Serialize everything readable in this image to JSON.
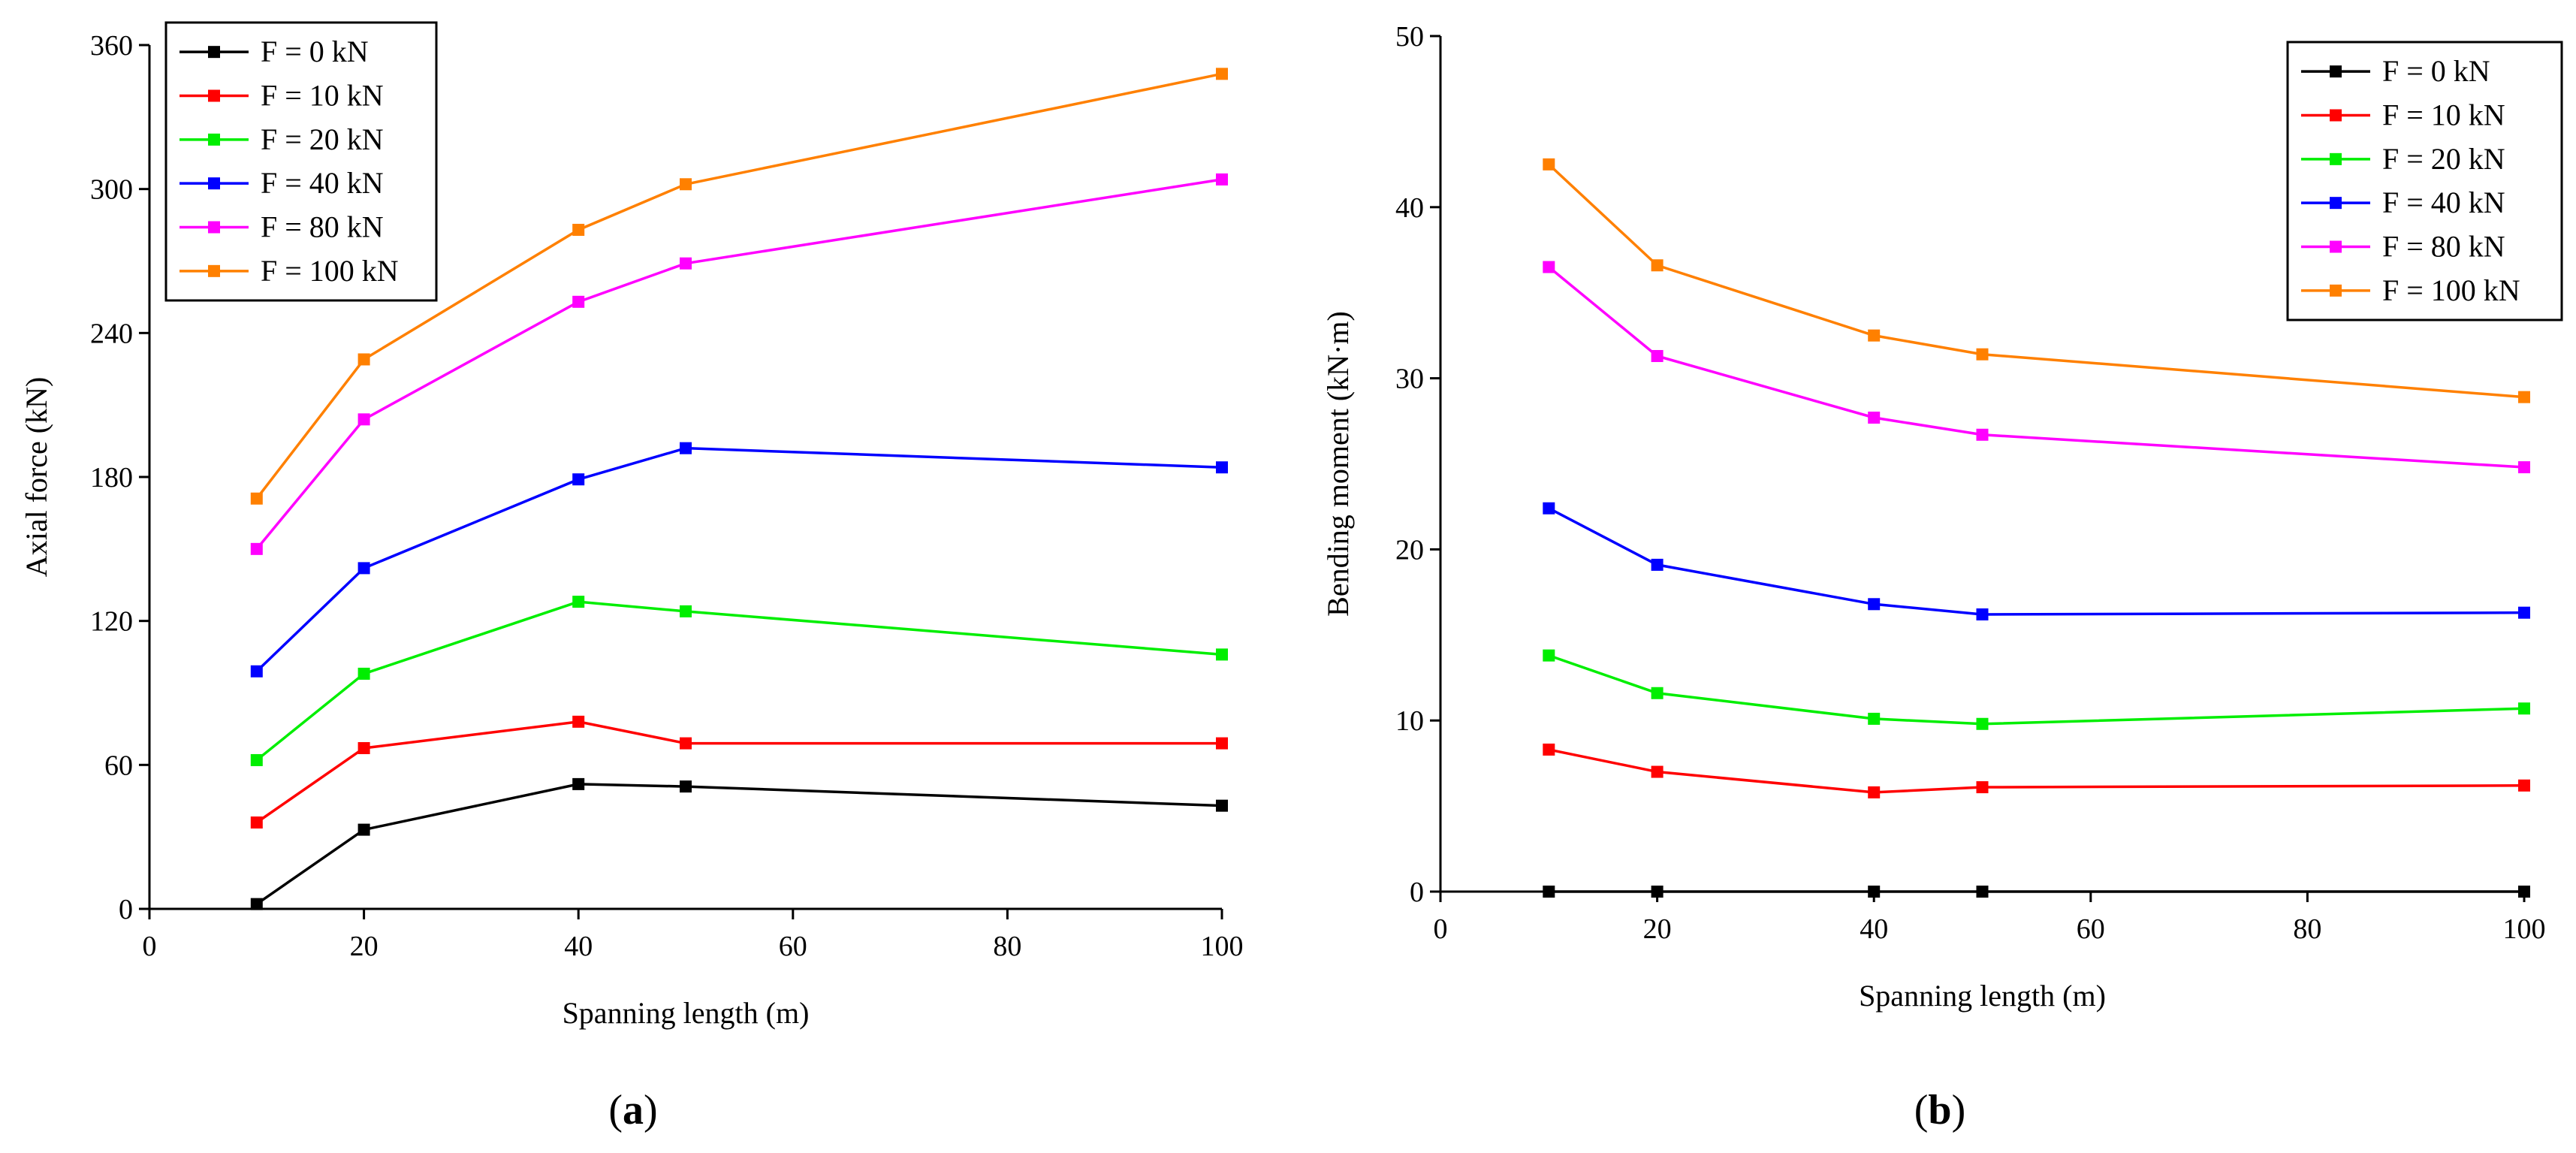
{
  "chart_data": [
    {
      "type": "line",
      "panel_label": "a",
      "title": "",
      "xlabel": "Spanning length (m)",
      "ylabel": "Axial force (kN)",
      "xlim": [
        0,
        100
      ],
      "ylim": [
        0,
        360
      ],
      "xticks": [
        0,
        20,
        40,
        60,
        80,
        100
      ],
      "yticks": [
        0,
        60,
        120,
        180,
        240,
        300,
        360
      ],
      "grid": false,
      "legend_position": "top-left",
      "x": [
        10,
        20,
        40,
        50,
        100
      ],
      "series": [
        {
          "name": "F = 0 kN",
          "color": "#000000",
          "values": [
            2,
            33,
            52,
            51,
            43
          ]
        },
        {
          "name": "F = 10 kN",
          "color": "#ff0000",
          "values": [
            36,
            67,
            78,
            69,
            69
          ]
        },
        {
          "name": "F = 20 kN",
          "color": "#00ee00",
          "values": [
            62,
            98,
            128,
            124,
            106
          ]
        },
        {
          "name": "F = 40 kN",
          "color": "#0000ff",
          "values": [
            99,
            142,
            179,
            192,
            184
          ]
        },
        {
          "name": "F = 80 kN",
          "color": "#ff00ff",
          "values": [
            150,
            204,
            253,
            269,
            304
          ]
        },
        {
          "name": "F = 100 kN",
          "color": "#ff8000",
          "values": [
            171,
            229,
            283,
            302,
            348
          ]
        }
      ]
    },
    {
      "type": "line",
      "panel_label": "b",
      "title": "",
      "xlabel": "Spanning length (m)",
      "ylabel": "Bending moment (kN·m)",
      "xlim": [
        0,
        100
      ],
      "ylim": [
        0,
        50
      ],
      "xticks": [
        0,
        20,
        40,
        60,
        80,
        100
      ],
      "yticks": [
        0,
        10,
        20,
        30,
        40,
        50
      ],
      "grid": false,
      "legend_position": "top-right",
      "x": [
        10,
        20,
        40,
        50,
        100
      ],
      "series": [
        {
          "name": "F = 0 kN",
          "color": "#000000",
          "values": [
            0,
            0,
            0,
            0,
            0
          ]
        },
        {
          "name": "F = 10 kN",
          "color": "#ff0000",
          "values": [
            8.3,
            7.0,
            5.8,
            6.1,
            6.2
          ]
        },
        {
          "name": "F = 20 kN",
          "color": "#00ee00",
          "values": [
            13.8,
            11.6,
            10.1,
            9.8,
            10.7
          ]
        },
        {
          "name": "F = 40 kN",
          "color": "#0000ff",
          "values": [
            22.4,
            19.1,
            16.8,
            16.2,
            16.3
          ]
        },
        {
          "name": "F = 80 kN",
          "color": "#ff00ff",
          "values": [
            36.5,
            31.3,
            27.7,
            26.7,
            24.8
          ]
        },
        {
          "name": "F = 100 kN",
          "color": "#ff8000",
          "values": [
            42.5,
            36.6,
            32.5,
            31.4,
            28.9
          ]
        }
      ]
    }
  ]
}
